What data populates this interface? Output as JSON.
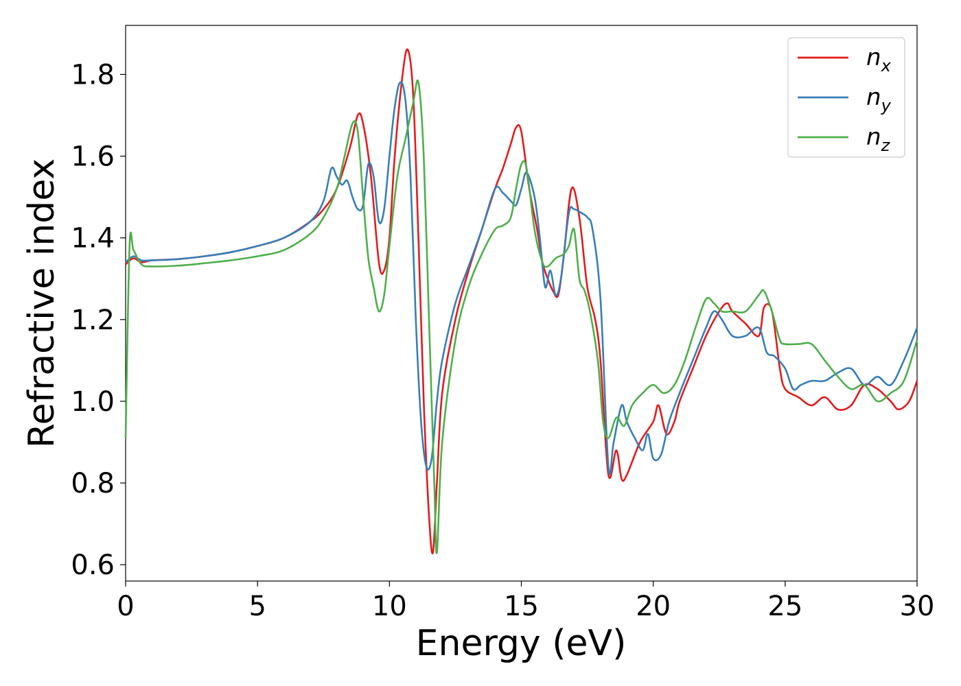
{
  "chart_data": {
    "type": "line",
    "xlabel": "Energy (eV)",
    "ylabel": "Refractive index",
    "xlim": [
      0,
      30
    ],
    "ylim": [
      0.56,
      1.92
    ],
    "xticks": [
      "0",
      "5",
      "10",
      "15",
      "20",
      "25",
      "30"
    ],
    "yticks": [
      "0.6",
      "0.8",
      "1.0",
      "1.2",
      "1.4",
      "1.6",
      "1.8"
    ],
    "grid": false,
    "legend_position": "top-right",
    "series": [
      {
        "name": "n",
        "subscript": "x",
        "color": "#e41a1c",
        "x": [
          0,
          0.3,
          0.6,
          1.0,
          2.0,
          3.0,
          4.0,
          5.0,
          6.0,
          7.0,
          7.5,
          8.0,
          8.5,
          8.8,
          9.0,
          9.3,
          9.6,
          9.8,
          10.0,
          10.2,
          10.5,
          10.7,
          10.9,
          11.1,
          11.3,
          11.5,
          11.65,
          11.8,
          12.0,
          12.5,
          13.0,
          13.5,
          14.0,
          14.3,
          14.6,
          14.8,
          15.0,
          15.3,
          15.6,
          15.8,
          16.0,
          16.2,
          16.4,
          16.6,
          16.9,
          17.2,
          17.5,
          17.8,
          18.0,
          18.3,
          18.6,
          18.8,
          19.0,
          19.5,
          20.0,
          20.2,
          20.5,
          20.8,
          21.0,
          21.5,
          22.0,
          22.5,
          22.8,
          23.0,
          23.5,
          24.0,
          24.2,
          24.5,
          24.8,
          25.0,
          25.5,
          26.0,
          26.5,
          27.0,
          27.5,
          28.0,
          28.5,
          29.0,
          29.3,
          29.7,
          30.0
        ],
        "y": [
          1.335,
          1.35,
          1.34,
          1.345,
          1.348,
          1.355,
          1.365,
          1.38,
          1.4,
          1.44,
          1.47,
          1.52,
          1.62,
          1.7,
          1.68,
          1.55,
          1.34,
          1.32,
          1.4,
          1.6,
          1.8,
          1.86,
          1.75,
          1.4,
          1.0,
          0.72,
          0.63,
          0.8,
          1.02,
          1.2,
          1.32,
          1.42,
          1.52,
          1.57,
          1.63,
          1.67,
          1.66,
          1.52,
          1.42,
          1.34,
          1.3,
          1.27,
          1.26,
          1.35,
          1.52,
          1.45,
          1.28,
          1.2,
          1.1,
          0.82,
          0.88,
          0.81,
          0.82,
          0.9,
          0.95,
          0.99,
          0.92,
          0.95,
          1.0,
          1.08,
          1.16,
          1.22,
          1.24,
          1.22,
          1.19,
          1.16,
          1.23,
          1.22,
          1.08,
          1.03,
          1.01,
          0.99,
          1.01,
          0.98,
          0.99,
          1.04,
          1.03,
          1.0,
          0.98,
          1.0,
          1.05
        ]
      },
      {
        "name": "n",
        "subscript": "y",
        "color": "#377eb8",
        "x": [
          0,
          0.3,
          0.6,
          1.0,
          2.0,
          3.0,
          4.0,
          5.0,
          6.0,
          7.0,
          7.5,
          7.8,
          8.0,
          8.2,
          8.4,
          8.6,
          8.8,
          9.0,
          9.2,
          9.4,
          9.6,
          9.8,
          10.0,
          10.2,
          10.4,
          10.6,
          10.8,
          11.0,
          11.2,
          11.4,
          11.6,
          11.8,
          12.0,
          12.5,
          13.0,
          13.5,
          14.0,
          14.3,
          14.6,
          14.8,
          15.0,
          15.2,
          15.5,
          15.7,
          15.9,
          16.1,
          16.3,
          16.5,
          16.8,
          17.0,
          17.3,
          17.5,
          17.7,
          18.0,
          18.3,
          18.5,
          18.8,
          19.0,
          19.3,
          19.6,
          19.8,
          20.0,
          20.3,
          20.6,
          21.0,
          21.5,
          22.0,
          22.3,
          22.6,
          23.0,
          23.5,
          24.0,
          24.3,
          24.6,
          25.0,
          25.3,
          25.6,
          26.0,
          26.5,
          27.0,
          27.5,
          28.0,
          28.5,
          29.0,
          29.5,
          30.0
        ],
        "y": [
          1.34,
          1.355,
          1.345,
          1.345,
          1.348,
          1.355,
          1.365,
          1.38,
          1.4,
          1.44,
          1.49,
          1.57,
          1.55,
          1.53,
          1.54,
          1.5,
          1.47,
          1.48,
          1.58,
          1.55,
          1.44,
          1.47,
          1.6,
          1.72,
          1.78,
          1.74,
          1.55,
          1.2,
          0.95,
          0.84,
          0.86,
          1.0,
          1.1,
          1.24,
          1.33,
          1.42,
          1.52,
          1.51,
          1.49,
          1.48,
          1.52,
          1.56,
          1.5,
          1.4,
          1.28,
          1.32,
          1.26,
          1.3,
          1.46,
          1.47,
          1.46,
          1.45,
          1.42,
          1.25,
          0.84,
          0.9,
          0.99,
          0.95,
          0.91,
          0.88,
          0.92,
          0.86,
          0.87,
          0.95,
          1.02,
          1.1,
          1.18,
          1.22,
          1.2,
          1.16,
          1.16,
          1.18,
          1.12,
          1.11,
          1.08,
          1.03,
          1.04,
          1.05,
          1.05,
          1.07,
          1.08,
          1.04,
          1.06,
          1.04,
          1.1,
          1.18
        ]
      },
      {
        "name": "n",
        "subscript": "z",
        "color": "#4daf4a",
        "x": [
          0,
          0.15,
          0.3,
          0.6,
          1.0,
          2.0,
          3.0,
          4.0,
          5.0,
          6.0,
          7.0,
          7.5,
          8.0,
          8.3,
          8.6,
          8.8,
          9.0,
          9.2,
          9.4,
          9.6,
          9.8,
          10.0,
          10.3,
          10.6,
          10.9,
          11.1,
          11.3,
          11.5,
          11.7,
          11.8,
          12.0,
          12.5,
          13.0,
          13.5,
          14.0,
          14.3,
          14.6,
          14.8,
          15.0,
          15.2,
          15.5,
          15.8,
          16.0,
          16.3,
          16.6,
          16.8,
          17.0,
          17.2,
          17.4,
          17.6,
          17.9,
          18.1,
          18.3,
          18.6,
          18.9,
          19.2,
          19.6,
          20.0,
          20.4,
          20.8,
          21.2,
          21.6,
          22.0,
          22.3,
          22.6,
          23.0,
          23.5,
          24.0,
          24.2,
          24.5,
          24.8,
          25.0,
          25.5,
          26.0,
          26.5,
          27.0,
          27.5,
          28.0,
          28.5,
          29.0,
          29.5,
          30.0
        ],
        "y": [
          0.91,
          1.38,
          1.37,
          1.335,
          1.33,
          1.332,
          1.338,
          1.345,
          1.355,
          1.37,
          1.41,
          1.45,
          1.52,
          1.6,
          1.68,
          1.66,
          1.5,
          1.35,
          1.28,
          1.22,
          1.26,
          1.38,
          1.55,
          1.64,
          1.73,
          1.78,
          1.6,
          1.2,
          0.8,
          0.63,
          0.9,
          1.15,
          1.28,
          1.36,
          1.42,
          1.43,
          1.45,
          1.52,
          1.58,
          1.57,
          1.42,
          1.34,
          1.33,
          1.35,
          1.36,
          1.38,
          1.42,
          1.3,
          1.27,
          1.22,
          1.1,
          0.95,
          0.91,
          0.96,
          0.94,
          0.99,
          1.02,
          1.04,
          1.02,
          1.04,
          1.1,
          1.18,
          1.25,
          1.24,
          1.22,
          1.22,
          1.22,
          1.26,
          1.27,
          1.22,
          1.15,
          1.14,
          1.14,
          1.14,
          1.1,
          1.06,
          1.03,
          1.04,
          1.0,
          1.02,
          1.05,
          1.15
        ]
      }
    ]
  }
}
